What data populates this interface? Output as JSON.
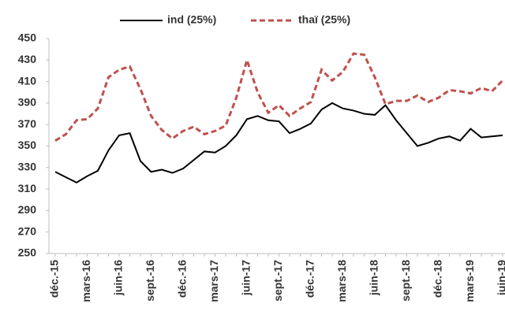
{
  "chart_data": {
    "type": "line",
    "categories": [
      "déc.-15",
      null,
      null,
      "mars-16",
      null,
      null,
      "juin-16",
      null,
      null,
      "sept.-16",
      null,
      null,
      "déc.-16",
      null,
      null,
      "mars-17",
      null,
      null,
      "juin-17",
      null,
      null,
      "sept.-17",
      null,
      null,
      "déc.-17",
      null,
      null,
      "mars-18",
      null,
      null,
      "juin-18",
      null,
      null,
      "sept.-18",
      null,
      null,
      "déc.-18",
      null,
      null,
      "mars-19",
      null,
      null,
      "juin-19"
    ],
    "series": [
      {
        "name": "ind (25%)",
        "color": "#000000",
        "dash": false,
        "values": [
          326,
          321,
          316,
          322,
          327,
          346,
          360,
          362,
          336,
          326,
          328,
          325,
          329,
          337,
          345,
          344,
          350,
          360,
          375,
          378,
          374,
          373,
          362,
          366,
          371,
          384,
          390,
          385,
          383,
          380,
          379,
          388,
          374,
          362,
          350,
          353,
          357,
          359,
          355,
          366,
          358,
          359,
          360
        ]
      },
      {
        "name": "thaï (25%)",
        "color": "#c0504d",
        "dash": true,
        "values": [
          355,
          361,
          374,
          375,
          385,
          414,
          421,
          424,
          403,
          378,
          365,
          357,
          364,
          368,
          361,
          364,
          369,
          395,
          430,
          400,
          381,
          388,
          378,
          385,
          391,
          421,
          411,
          419,
          436,
          435,
          414,
          389,
          392,
          392,
          397,
          391,
          395,
          402,
          401,
          399,
          404,
          401,
          411
        ]
      }
    ],
    "ylim": [
      250,
      450
    ],
    "yticks": [
      250,
      270,
      290,
      310,
      330,
      350,
      370,
      390,
      410,
      430,
      450
    ],
    "legend": "top"
  }
}
